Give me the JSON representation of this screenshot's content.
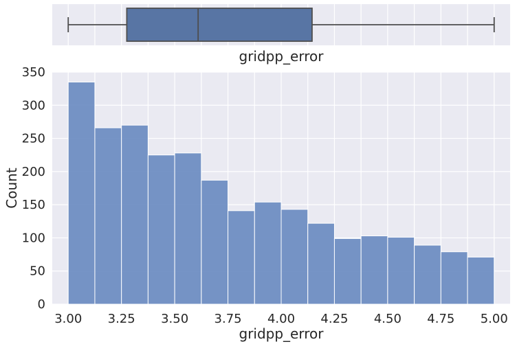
{
  "chart_data": [
    {
      "type": "box",
      "xlabel": "gridpp_error",
      "min": 3.0,
      "q1": 3.275,
      "median": 3.61,
      "q3": 4.145,
      "max": 5.0,
      "xlim": [
        2.925,
        5.075
      ],
      "color": "#5875A4"
    },
    {
      "type": "bar",
      "subtype": "histogram",
      "xlabel": "gridpp_error",
      "ylabel": "Count",
      "xlim": [
        2.925,
        5.075
      ],
      "ylim": [
        0,
        350
      ],
      "bin_edges": [
        3.0,
        3.125,
        3.25,
        3.375,
        3.5,
        3.625,
        3.75,
        3.875,
        4.0,
        4.125,
        4.25,
        4.375,
        4.5,
        4.625,
        4.75,
        4.875,
        5.0
      ],
      "values": [
        335,
        266,
        270,
        225,
        228,
        187,
        141,
        154,
        143,
        122,
        99,
        103,
        101,
        89,
        79,
        71
      ],
      "x_ticks": [
        "3.00",
        "3.25",
        "3.50",
        "3.75",
        "4.00",
        "4.25",
        "4.50",
        "4.75",
        "5.00"
      ],
      "y_ticks": [
        "0",
        "50",
        "100",
        "150",
        "200",
        "250",
        "300",
        "350"
      ],
      "color": "#6A8BC1"
    }
  ],
  "colors": {
    "background": "#EAEAF2",
    "grid": "#FFFFFF",
    "box_edge": "#4D4D4D"
  }
}
